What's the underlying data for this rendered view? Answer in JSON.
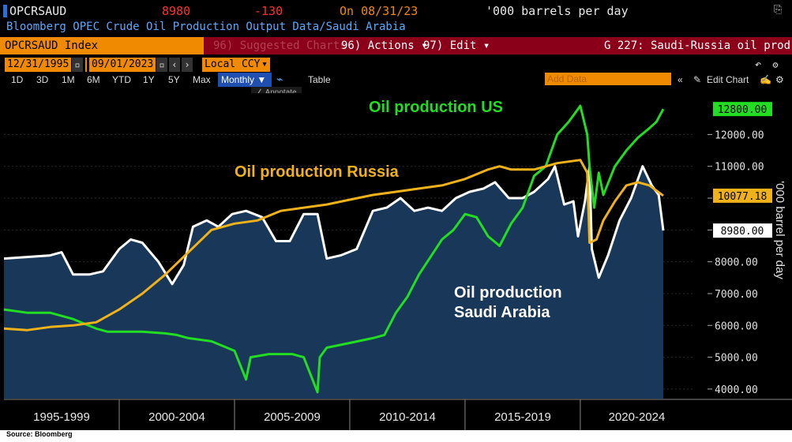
{
  "header": {
    "ticker": "OPCRSAUD",
    "last_value": "8980",
    "change": "-130",
    "on_date": "On 08/31/23",
    "units": "'000 barrels per day",
    "description": "Bloomberg OPEC Crude Oil Production Output Data/Saudi Arabia"
  },
  "toolbar": {
    "index_label": "OPCRSAUD Index",
    "suggested_charts": "96) Suggested Charts",
    "actions": "96) Actions ▾",
    "edit": "97) Edit ▾",
    "chart_title": "G 227: Saudi-Russia oil prod",
    "start_date": "12/31/1995",
    "end_date": "09/01/2023",
    "currency": "Local CCY",
    "add_data_placeholder": "Add Data",
    "edit_chart": "Edit Chart",
    "annotate": "Annotate",
    "periods": [
      "1D",
      "3D",
      "1M",
      "6M",
      "YTD",
      "1Y",
      "5Y",
      "Max"
    ],
    "frequency": "Monthly ▼",
    "table": "Table"
  },
  "colors": {
    "background": "#000000",
    "saudi_line": "#ffffff",
    "saudi_fill": "#1a3a5e",
    "us_line": "#22dd22",
    "russia_line": "#f0b21a",
    "toolbar_red": "#8b0018",
    "toolbar_orange": "#f08a00"
  },
  "chart_data": {
    "type": "line",
    "ylabel": "'000 barrel per day",
    "ylim": [
      3700,
      13300
    ],
    "yticks": [
      4000,
      5000,
      6000,
      7000,
      8000,
      9000,
      10000,
      11000,
      12000
    ],
    "ytick_labels": [
      "4000.00",
      "5000.00",
      "6000.00",
      "7000.00",
      "8000.00",
      "9000.00",
      "10000.00",
      "11000.00",
      "12000.00"
    ],
    "xlim": [
      1995.0,
      2024.9
    ],
    "x_periods": [
      "1995-1999",
      "2000-2004",
      "2005-2009",
      "2010-2014",
      "2015-2019",
      "2020-2024"
    ],
    "annotations": [
      "Oil production US",
      "Oil production Russia",
      "Oil production",
      "Saudi Arabia"
    ],
    "series": [
      {
        "name": "Oil production Saudi Arabia",
        "last_label": "8980.00",
        "x": [
          1995.0,
          1996.0,
          1997.0,
          1997.5,
          1998.0,
          1998.7,
          1999.3,
          2000.0,
          2000.5,
          2001.0,
          2001.7,
          2002.3,
          2002.8,
          2003.2,
          2003.8,
          2004.3,
          2004.9,
          2005.5,
          2006.2,
          2006.8,
          2007.4,
          2008.0,
          2008.6,
          2009.0,
          2009.6,
          2010.3,
          2011.0,
          2011.6,
          2012.2,
          2012.8,
          2013.4,
          2014.0,
          2014.6,
          2015.2,
          2015.8,
          2016.3,
          2016.9,
          2017.5,
          2018.0,
          2018.6,
          2018.9,
          2019.3,
          2019.7,
          2019.9,
          2020.2,
          2020.4,
          2020.5,
          2020.8,
          2021.2,
          2021.7,
          2022.2,
          2022.7,
          2023.1,
          2023.4,
          2023.6
        ],
        "values": [
          8100,
          8150,
          8200,
          8300,
          7600,
          7600,
          7700,
          8400,
          8700,
          8600,
          8000,
          7300,
          7900,
          9100,
          9300,
          9100,
          9500,
          9600,
          9400,
          8650,
          8650,
          9500,
          9500,
          8100,
          8200,
          8400,
          9600,
          9700,
          10000,
          9600,
          9700,
          9600,
          10000,
          10200,
          10300,
          10500,
          10000,
          10000,
          10200,
          10600,
          11000,
          9800,
          9900,
          8800,
          9900,
          11000,
          8400,
          7500,
          8200,
          9300,
          10000,
          11000,
          10400,
          10100,
          8980
        ]
      },
      {
        "name": "Oil production US",
        "last_label": "12800.00",
        "x": [
          1995.0,
          1996.0,
          1997.0,
          1998.0,
          1999.0,
          1999.5,
          2000.0,
          2001.0,
          2002.0,
          2002.5,
          2003.0,
          2004.0,
          2005.0,
          2005.5,
          2005.7,
          2006.5,
          2007.5,
          2008.0,
          2008.6,
          2008.7,
          2009.0,
          2010.0,
          2011.0,
          2011.5,
          2012.0,
          2012.5,
          2013.0,
          2014.0,
          2014.5,
          2015.0,
          2015.5,
          2016.0,
          2016.5,
          2017.0,
          2017.5,
          2018.0,
          2018.5,
          2019.0,
          2019.5,
          2020.0,
          2020.3,
          2020.4,
          2020.6,
          2020.8,
          2021.0,
          2021.5,
          2022.0,
          2022.5,
          2023.0,
          2023.3,
          2023.6
        ],
        "values": [
          6500,
          6400,
          6400,
          6200,
          5900,
          5800,
          5800,
          5800,
          5750,
          5700,
          5600,
          5500,
          5200,
          4300,
          5000,
          5100,
          5100,
          5000,
          3900,
          5000,
          5300,
          5450,
          5600,
          5700,
          6400,
          6900,
          7600,
          8700,
          9000,
          9500,
          9400,
          8800,
          8500,
          9200,
          9700,
          10700,
          11000,
          12000,
          12400,
          12900,
          12000,
          11000,
          9700,
          10800,
          10100,
          11000,
          11500,
          11900,
          12200,
          12400,
          12800
        ]
      },
      {
        "name": "Oil production Russia",
        "last_label": "10077.18",
        "x": [
          1995.0,
          1996.0,
          1997.0,
          1998.0,
          1999.0,
          2000.0,
          2001.0,
          2002.0,
          2003.0,
          2004.0,
          2005.0,
          2006.0,
          2007.0,
          2008.0,
          2009.0,
          2010.0,
          2011.0,
          2012.0,
          2013.0,
          2014.0,
          2015.0,
          2016.0,
          2016.5,
          2017.0,
          2018.0,
          2019.0,
          2020.0,
          2020.3,
          2020.4,
          2020.7,
          2021.0,
          2021.5,
          2022.0,
          2022.5,
          2023.0,
          2023.6
        ],
        "values": [
          5900,
          5850,
          5950,
          6000,
          6100,
          6500,
          7000,
          7600,
          8300,
          9000,
          9200,
          9300,
          9600,
          9700,
          9800,
          9950,
          10100,
          10200,
          10300,
          10400,
          10600,
          10900,
          11000,
          10900,
          10900,
          11100,
          11200,
          10800,
          8600,
          8700,
          9300,
          9900,
          10400,
          10500,
          10400,
          10077.18
        ]
      }
    ]
  },
  "footer": {
    "source": "Source: Bloomberg"
  }
}
